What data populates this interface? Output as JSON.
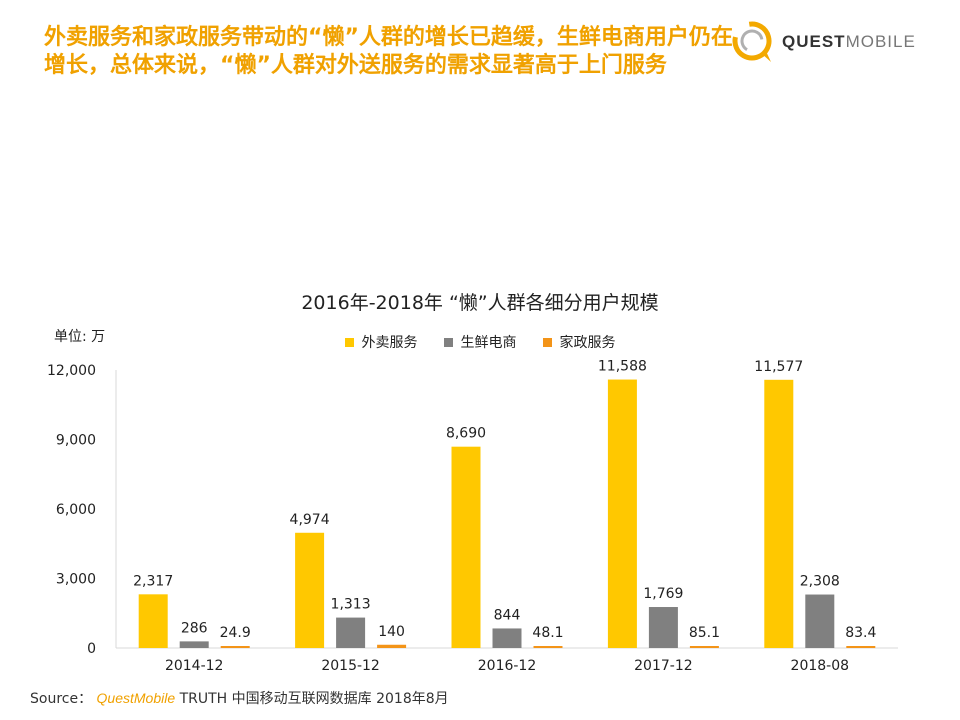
{
  "headline": "外卖服务和家政服务带动的“懒”人群的增长已趋缓，生鲜电商用户仍在增长，总体来说，“懒”人群对外送服务的需求显著高于上门服务",
  "brand": {
    "logo_quest": "QUEST",
    "logo_mobile": "MOBILE",
    "logo_icon": "speech-bubble-icon"
  },
  "source": {
    "label": "Source：",
    "brand": "QuestMobile",
    "text": "TRUTH 中国移动互联网数据库 2018年8月"
  },
  "colors": {
    "accent": "#f0a100",
    "series": [
      "#ffc800",
      "#808080",
      "#f39418"
    ]
  },
  "chart_data": {
    "type": "bar",
    "title": "2016年-2018年 “懒”人群各细分用户规模",
    "unit_label": "单位: 万",
    "categories": [
      "2014-12",
      "2015-12",
      "2016-12",
      "2017-12",
      "2018-08"
    ],
    "series": [
      {
        "name": "外卖服务",
        "values": [
          2317,
          4974,
          8690,
          11588,
          11577
        ],
        "labels": [
          "2,317",
          "4,974",
          "8,690",
          "11,588",
          "11,577"
        ],
        "color": "#ffc800"
      },
      {
        "name": "生鲜电商",
        "values": [
          286,
          1313,
          844,
          1769,
          2308
        ],
        "labels": [
          "286",
          "1,313",
          "844",
          "1,769",
          "2,308"
        ],
        "color": "#808080"
      },
      {
        "name": "家政服务",
        "values": [
          24.9,
          140,
          48.1,
          85.1,
          83.4
        ],
        "labels": [
          "24.9",
          "140",
          "48.1",
          "85.1",
          "83.4"
        ],
        "color": "#f39418"
      }
    ],
    "y_ticks": [
      "0",
      "3,000",
      "6,000",
      "9,000",
      "12,000"
    ],
    "ylim": [
      0,
      12000
    ],
    "legend_position": "top-center",
    "grid": false
  }
}
